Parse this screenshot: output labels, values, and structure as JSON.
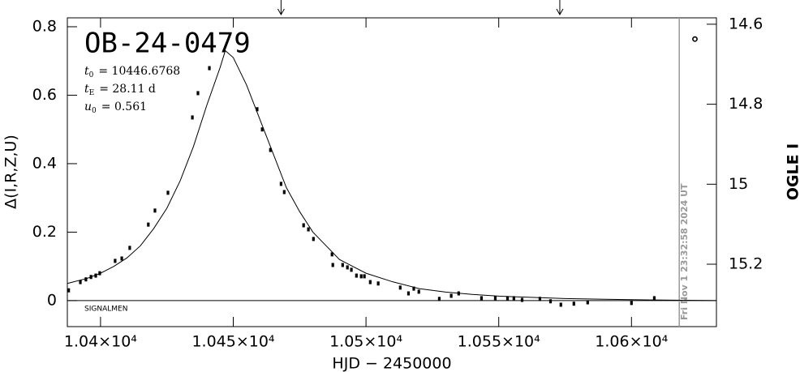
{
  "chart_data": {
    "type": "scatter",
    "title": "OB-24-0479",
    "parameters": [
      {
        "symbol": "t",
        "subscript": "0",
        "text": "= 10446.6768"
      },
      {
        "symbol": "t",
        "subscript": "E",
        "text": "= 28.11 d"
      },
      {
        "symbol": "u",
        "subscript": "0",
        "text": "= 0.561"
      }
    ],
    "credit": "SIGNALMEN",
    "x_label": "HJD − 2450000",
    "y_label": "Δ(I,R,Z,U)",
    "y2_label": "OGLE I",
    "now_line": {
      "x": 10618,
      "label": "Fri Nov  1 23:32:58 2024 UT",
      "color": "#999999"
    },
    "arrows": [
      10468,
      10573
    ],
    "xlim": [
      10387.5,
      10632
    ],
    "xticks": [
      {
        "value": 10400,
        "label": "1.04×10⁴"
      },
      {
        "value": 10450,
        "label": "1.045×10⁴"
      },
      {
        "value": 10500,
        "label": "1.05×10⁴"
      },
      {
        "value": 10550,
        "label": "1.055×10⁴"
      },
      {
        "value": 10600,
        "label": "1.06×10⁴"
      }
    ],
    "ylim": [
      -0.076,
      0.826
    ],
    "yticks": [
      0,
      0.2,
      0.4,
      0.6,
      0.8
    ],
    "y2lim": [
      15.356,
      14.584
    ],
    "y2ticks": [
      14.6,
      14.8,
      15,
      15.2
    ],
    "baseline": 0,
    "series": [
      {
        "mode": "points",
        "marker": "square",
        "color": "#000000",
        "x": [
          10388,
          10392.4,
          10394.5,
          10396.4,
          10398.2,
          10399.7,
          10405.5,
          10408,
          10411,
          10418,
          10420.5,
          10425.4,
          10434.6,
          10436.7,
          10441,
          10459,
          10460.9,
          10464,
          10468,
          10469.2,
          10476.5,
          10478.3,
          10480.2,
          10487.2,
          10487.5,
          10491.2,
          10493,
          10494.5,
          10496.4,
          10498.2,
          10499.4,
          10501.6,
          10504.6,
          10512.9,
          10516,
          10518,
          10519.9,
          10527.6,
          10532.1,
          10534.9,
          10543.5,
          10548.7,
          10553.3,
          10555.7,
          10558.8,
          10565.5,
          10569.5,
          10573.4,
          10578.3,
          10583.5,
          10600,
          10608.6
        ],
        "values": [
          0.03,
          0.054,
          0.062,
          0.069,
          0.073,
          0.08,
          0.116,
          0.123,
          0.154,
          0.222,
          0.263,
          0.315,
          0.535,
          0.606,
          0.679,
          0.559,
          0.5,
          0.44,
          0.341,
          0.317,
          0.22,
          0.208,
          0.18,
          0.135,
          0.104,
          0.104,
          0.097,
          0.09,
          0.073,
          0.071,
          0.071,
          0.054,
          0.05,
          0.038,
          0.021,
          0.035,
          0.026,
          0.005,
          0.014,
          0.021,
          0.007,
          0.007,
          0.007,
          0.007,
          0.002,
          0.005,
          -0.002,
          -0.012,
          -0.009,
          -0.005,
          -0.007,
          0.007
        ]
      },
      {
        "mode": "points",
        "marker": "open-circle",
        "color": "#000000",
        "x": [
          10623.9
        ],
        "values": [
          0.764
        ]
      },
      {
        "mode": "line",
        "color": "#000000",
        "x": [
          10387.5,
          10395,
          10400,
          10405,
          10410,
          10415,
          10420,
          10425,
          10430,
          10435,
          10440,
          10445,
          10447,
          10450,
          10455,
          10460,
          10465,
          10470,
          10475,
          10480,
          10485,
          10490,
          10495,
          10500,
          10510,
          10520,
          10530,
          10540,
          10550,
          10560,
          10575,
          10590,
          10605,
          10620,
          10632
        ],
        "values": [
          0.05,
          0.065,
          0.08,
          0.1,
          0.125,
          0.16,
          0.21,
          0.27,
          0.35,
          0.45,
          0.57,
          0.68,
          0.73,
          0.71,
          0.63,
          0.53,
          0.43,
          0.33,
          0.26,
          0.2,
          0.16,
          0.12,
          0.1,
          0.08,
          0.055,
          0.035,
          0.025,
          0.018,
          0.013,
          0.01,
          0.006,
          0.004,
          0.002,
          0.001,
          0
        ]
      }
    ]
  }
}
